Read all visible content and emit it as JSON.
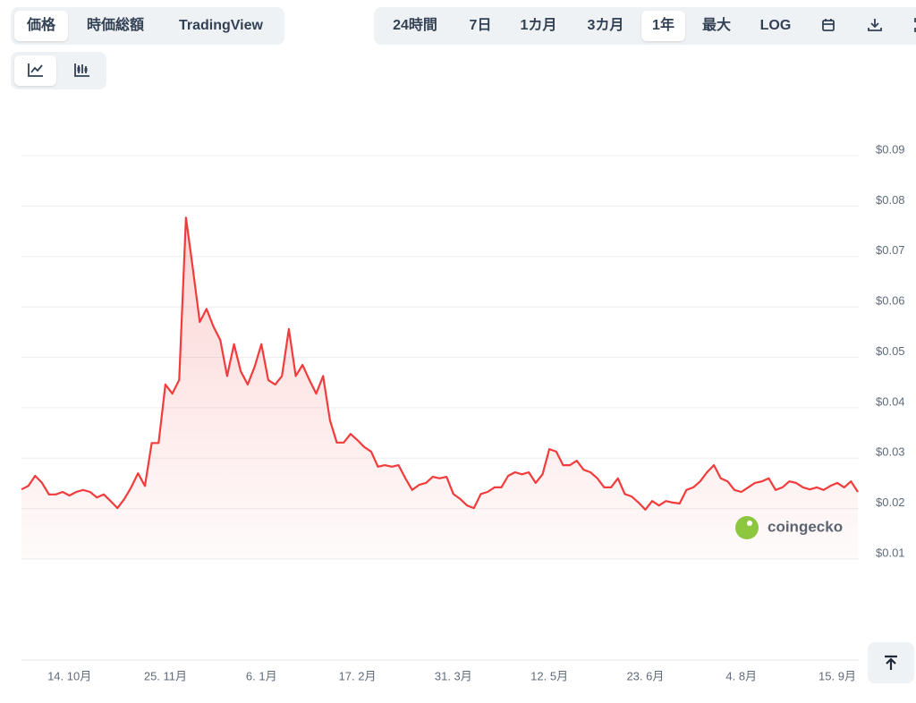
{
  "ui": {
    "views": [
      "価格",
      "時価総額",
      "TradingView"
    ],
    "ranges": [
      "24時間",
      "7日",
      "1カ月",
      "3カ月",
      "1年",
      "最大",
      "LOG"
    ],
    "watermark": "coingecko"
  },
  "chart_data": {
    "type": "line",
    "color": "#f23b3b",
    "ylim": [
      0.01,
      0.09
    ],
    "yticks": [
      {
        "value": 0.01,
        "label": "$0.01"
      },
      {
        "value": 0.02,
        "label": "$0.02"
      },
      {
        "value": 0.03,
        "label": "$0.03"
      },
      {
        "value": 0.04,
        "label": "$0.04"
      },
      {
        "value": 0.05,
        "label": "$0.05"
      },
      {
        "value": 0.06,
        "label": "$0.06"
      },
      {
        "value": 0.07,
        "label": "$0.07"
      },
      {
        "value": 0.08,
        "label": "$0.08"
      },
      {
        "value": 0.09,
        "label": "$0.09"
      }
    ],
    "grid": true,
    "categories": [
      null,
      null,
      null,
      null,
      null,
      null,
      null,
      "14. 10月",
      null,
      null,
      null,
      null,
      null,
      null,
      null,
      null,
      null,
      null,
      null,
      null,
      null,
      "25. 11月",
      null,
      null,
      null,
      null,
      null,
      null,
      null,
      null,
      null,
      null,
      null,
      null,
      null,
      "6. 1月",
      null,
      null,
      null,
      null,
      null,
      null,
      null,
      null,
      null,
      null,
      null,
      null,
      null,
      "17. 2月",
      null,
      null,
      null,
      null,
      null,
      null,
      null,
      null,
      null,
      null,
      null,
      null,
      null,
      "31. 3月",
      null,
      null,
      null,
      null,
      null,
      null,
      null,
      null,
      null,
      null,
      null,
      null,
      null,
      "12. 5月",
      null,
      null,
      null,
      null,
      null,
      null,
      null,
      null,
      null,
      null,
      null,
      null,
      null,
      "23. 6月",
      null,
      null,
      null,
      null,
      null,
      null,
      null,
      null,
      null,
      null,
      null,
      null,
      null,
      "4. 8月",
      null,
      null,
      null,
      null,
      null,
      null,
      null,
      null,
      null,
      null,
      null,
      null,
      null,
      "15. 9月",
      null,
      null,
      null
    ],
    "values": [
      0.0238,
      0.0245,
      0.0265,
      0.0251,
      0.0228,
      0.0228,
      0.0233,
      0.0226,
      0.0233,
      0.0237,
      0.0233,
      0.0222,
      0.0228,
      0.0215,
      0.0201,
      0.0219,
      0.0242,
      0.027,
      0.0245,
      0.033,
      0.033,
      0.0446,
      0.0428,
      0.0455,
      0.0777,
      0.0676,
      0.057,
      0.0596,
      0.0561,
      0.0534,
      0.0463,
      0.0526,
      0.0472,
      0.0446,
      0.0481,
      0.0526,
      0.0455,
      0.0446,
      0.0463,
      0.0556,
      0.0463,
      0.0485,
      0.0455,
      0.0428,
      0.0463,
      0.0375,
      0.0331,
      0.0331,
      0.0348,
      0.0336,
      0.0322,
      0.0313,
      0.0283,
      0.0286,
      0.0283,
      0.0286,
      0.026,
      0.0237,
      0.0247,
      0.0251,
      0.0263,
      0.026,
      0.0263,
      0.0229,
      0.0219,
      0.0206,
      0.0201,
      0.0229,
      0.0233,
      0.0242,
      0.0242,
      0.0265,
      0.0272,
      0.0268,
      0.0272,
      0.0251,
      0.0268,
      0.0318,
      0.0313,
      0.0286,
      0.0286,
      0.0295,
      0.0277,
      0.0272,
      0.026,
      0.0242,
      0.0242,
      0.026,
      0.0229,
      0.0224,
      0.0212,
      0.0198,
      0.0215,
      0.0206,
      0.0215,
      0.0212,
      0.021,
      0.0237,
      0.0242,
      0.0254,
      0.0272,
      0.0286,
      0.026,
      0.0254,
      0.0237,
      0.0233,
      0.0242,
      0.0251,
      0.0254,
      0.026,
      0.0237,
      0.0242,
      0.0254,
      0.0251,
      0.0242,
      0.0238,
      0.0242,
      0.0237,
      0.0245,
      0.0251,
      0.0242,
      0.0254,
      0.0233
    ]
  }
}
